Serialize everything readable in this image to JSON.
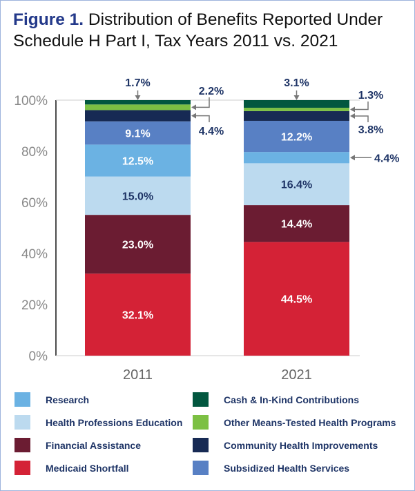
{
  "chart_data": {
    "type": "bar",
    "stacked": true,
    "title_prefix": "Figure 1.",
    "title": "Distribution of Benefits Reported Under Schedule H Part I, Tax Years 2011 vs. 2021",
    "categories": [
      "2011",
      "2021"
    ],
    "ylim": [
      0,
      100
    ],
    "yticks": [
      "0%",
      "20%",
      "40%",
      "60%",
      "80%",
      "100%"
    ],
    "grid": false,
    "legend_placement": "bottom",
    "series": [
      {
        "name": "Medicaid Shortfall",
        "color": "#d42236",
        "values": [
          32.1,
          44.5
        ],
        "labels": [
          "32.1%",
          "44.5%"
        ]
      },
      {
        "name": "Financial Assistance",
        "color": "#6b1c32",
        "values": [
          23.0,
          14.4
        ],
        "labels": [
          "23.0%",
          "14.4%"
        ]
      },
      {
        "name": "Health Professions Education",
        "color": "#bcdaef",
        "values": [
          15.0,
          16.4
        ],
        "labels": [
          "15.0%",
          "16.4%"
        ]
      },
      {
        "name": "Research",
        "color": "#6bb2e3",
        "values": [
          12.5,
          4.4
        ],
        "labels": [
          "12.5%",
          "4.4%"
        ]
      },
      {
        "name": "Subsidized Health Services",
        "color": "#5880c4",
        "values": [
          9.1,
          12.2
        ],
        "labels": [
          "9.1%",
          "12.2%"
        ]
      },
      {
        "name": "Community Health Improvements",
        "color": "#172a54",
        "values": [
          4.4,
          3.8
        ],
        "labels": [
          "4.4%",
          "3.8%"
        ]
      },
      {
        "name": "Other Means-Tested Health Programs",
        "color": "#7cc043",
        "values": [
          2.2,
          1.3
        ],
        "labels": [
          "2.2%",
          "1.3%"
        ]
      },
      {
        "name": "Cash & In-Kind Contributions",
        "color": "#02573f",
        "values": [
          1.7,
          3.1
        ],
        "labels": [
          "1.7%",
          "3.1%"
        ]
      }
    ],
    "legend_order": [
      3,
      7,
      2,
      6,
      1,
      5,
      0,
      4
    ]
  }
}
